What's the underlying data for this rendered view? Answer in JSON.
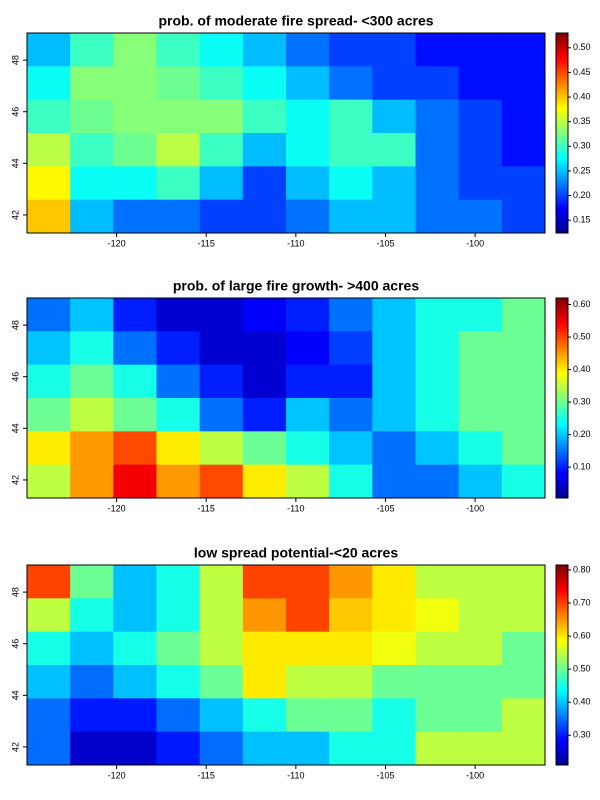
{
  "chart_data": [
    {
      "type": "heatmap",
      "title": "prob. of moderate fire spread- <300 acres",
      "xlim": [
        -125,
        -96.1
      ],
      "ylim": [
        41.3,
        49.05
      ],
      "xticks": [
        -120,
        -115,
        -110,
        -105,
        -100
      ],
      "yticks": [
        42,
        44,
        46,
        48
      ],
      "zlim": [
        0.124,
        0.53
      ],
      "zticks": [
        {
          "value": 0.15,
          "label": "0.15"
        },
        {
          "value": 0.2,
          "label": "0.20"
        },
        0.25,
        {
          "value": 0.3,
          "label": "0.30"
        },
        0.35,
        {
          "value": 0.4,
          "label": "0.40"
        },
        0.45,
        {
          "value": 0.5,
          "label": "0.50"
        }
      ],
      "colormap": [
        "#00008f",
        "#0000ff",
        "#0080ff",
        "#00ffff",
        "#80ff80",
        "#ffff00",
        "#ff8000",
        "#ff0000",
        "#800000"
      ],
      "values": [
        [
          0.25,
          0.3,
          0.33,
          0.3,
          0.28,
          0.25,
          0.22,
          0.2,
          0.2,
          0.18,
          0.18,
          0.18
        ],
        [
          0.28,
          0.33,
          0.33,
          0.32,
          0.3,
          0.28,
          0.25,
          0.22,
          0.2,
          0.2,
          0.18,
          0.18
        ],
        [
          0.3,
          0.32,
          0.33,
          0.33,
          0.33,
          0.3,
          0.28,
          0.3,
          0.25,
          0.22,
          0.2,
          0.18
        ],
        [
          0.35,
          0.3,
          0.32,
          0.35,
          0.3,
          0.25,
          0.28,
          0.3,
          0.3,
          0.22,
          0.2,
          0.18
        ],
        [
          0.38,
          0.28,
          0.28,
          0.3,
          0.25,
          0.2,
          0.25,
          0.28,
          0.25,
          0.22,
          0.2,
          0.2
        ],
        [
          0.4,
          0.25,
          0.22,
          0.22,
          0.2,
          0.2,
          0.22,
          0.25,
          0.25,
          0.22,
          0.22,
          0.2
        ]
      ]
    },
    {
      "type": "heatmap",
      "title": "prob. of large fire growth- >400 acres",
      "xlim": [
        -125,
        -96.1
      ],
      "ylim": [
        41.3,
        49.05
      ],
      "xticks": [
        -120,
        -115,
        -110,
        -105,
        -100
      ],
      "yticks": [
        42,
        44,
        46,
        48
      ],
      "zlim": [
        0.005,
        0.62
      ],
      "zticks": [
        {
          "value": 0.1,
          "label": "0.10"
        },
        {
          "value": 0.2,
          "label": "0.20"
        },
        {
          "value": 0.3,
          "label": "0.30"
        },
        {
          "value": 0.4,
          "label": "0.40"
        },
        {
          "value": 0.5,
          "label": "0.50"
        },
        {
          "value": 0.6,
          "label": "0.60"
        }
      ],
      "colormap": [
        "#00008f",
        "#0000ff",
        "#0080ff",
        "#00ffff",
        "#80ff80",
        "#ffff00",
        "#ff8000",
        "#ff0000",
        "#800000"
      ],
      "values": [
        [
          0.15,
          0.2,
          0.1,
          0.05,
          0.05,
          0.08,
          0.1,
          0.15,
          0.2,
          0.25,
          0.25,
          0.3
        ],
        [
          0.2,
          0.25,
          0.15,
          0.1,
          0.05,
          0.05,
          0.08,
          0.12,
          0.2,
          0.25,
          0.3,
          0.3
        ],
        [
          0.25,
          0.3,
          0.25,
          0.15,
          0.1,
          0.05,
          0.1,
          0.1,
          0.2,
          0.25,
          0.3,
          0.3
        ],
        [
          0.3,
          0.35,
          0.3,
          0.25,
          0.15,
          0.1,
          0.2,
          0.15,
          0.2,
          0.25,
          0.3,
          0.3
        ],
        [
          0.4,
          0.45,
          0.5,
          0.4,
          0.35,
          0.3,
          0.25,
          0.2,
          0.15,
          0.2,
          0.25,
          0.3
        ],
        [
          0.35,
          0.45,
          0.55,
          0.45,
          0.5,
          0.4,
          0.35,
          0.25,
          0.15,
          0.15,
          0.2,
          0.25
        ]
      ]
    },
    {
      "type": "heatmap",
      "title": "low spread potential-<20 acres",
      "xlim": [
        -125,
        -96.1
      ],
      "ylim": [
        41.3,
        49.05
      ],
      "xticks": [
        -120,
        -115,
        -110,
        -105,
        -100
      ],
      "yticks": [
        42,
        44,
        46,
        48
      ],
      "zlim": [
        0.21,
        0.815
      ],
      "zticks": [
        {
          "value": 0.3,
          "label": "0.30"
        },
        {
          "value": 0.4,
          "label": "0.40"
        },
        {
          "value": 0.5,
          "label": "0.50"
        },
        {
          "value": 0.6,
          "label": "0.60"
        },
        {
          "value": 0.7,
          "label": "0.70"
        },
        {
          "value": 0.8,
          "label": "0.80"
        }
      ],
      "colormap": [
        "#00008f",
        "#0000ff",
        "#0080ff",
        "#00ffff",
        "#80ff80",
        "#ffff00",
        "#ff8000",
        "#ff0000",
        "#800000"
      ],
      "values": [
        [
          0.7,
          0.5,
          0.4,
          0.45,
          0.55,
          0.7,
          0.7,
          0.65,
          0.6,
          0.55,
          0.55,
          0.55
        ],
        [
          0.55,
          0.45,
          0.4,
          0.45,
          0.55,
          0.65,
          0.7,
          0.62,
          0.6,
          0.58,
          0.55,
          0.55
        ],
        [
          0.45,
          0.4,
          0.45,
          0.5,
          0.55,
          0.6,
          0.6,
          0.6,
          0.58,
          0.55,
          0.55,
          0.5
        ],
        [
          0.4,
          0.35,
          0.4,
          0.45,
          0.5,
          0.6,
          0.55,
          0.55,
          0.5,
          0.5,
          0.5,
          0.5
        ],
        [
          0.35,
          0.3,
          0.3,
          0.35,
          0.4,
          0.45,
          0.5,
          0.5,
          0.45,
          0.5,
          0.5,
          0.55
        ],
        [
          0.35,
          0.25,
          0.25,
          0.3,
          0.35,
          0.4,
          0.4,
          0.45,
          0.45,
          0.55,
          0.55,
          0.55
        ]
      ]
    }
  ]
}
